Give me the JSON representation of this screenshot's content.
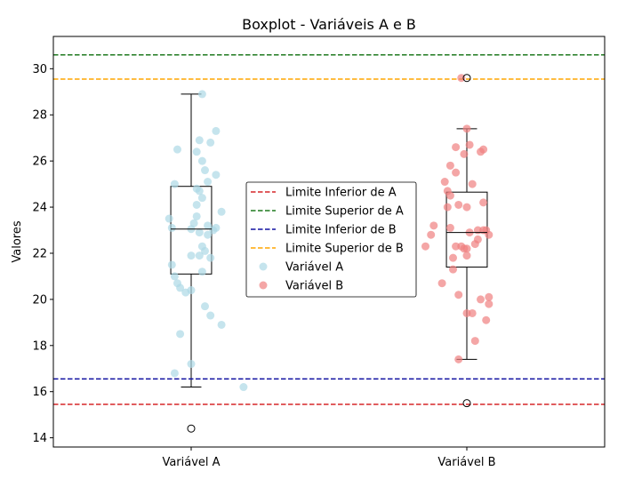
{
  "chart_data": {
    "type": "boxplot",
    "title": "Boxplot - Variáveis A e B",
    "xlabel": "",
    "ylabel": "Valores",
    "ylim": [
      13.6,
      31.4
    ],
    "yticks": [
      14,
      16,
      18,
      20,
      22,
      24,
      26,
      28,
      30
    ],
    "categories": [
      "Variável A",
      "Variável B"
    ],
    "boxes": [
      {
        "name": "Variável A",
        "whisker_low": 16.2,
        "q1": 21.1,
        "median": 23.05,
        "q3": 24.9,
        "whisker_high": 28.9,
        "outliers": [
          14.4
        ]
      },
      {
        "name": "Variável B",
        "whisker_low": 17.4,
        "q1": 21.4,
        "median": 22.9,
        "q3": 24.65,
        "whisker_high": 27.4,
        "outliers": [
          15.5,
          29.6
        ]
      }
    ],
    "reference_lines": [
      {
        "label": "Limite Inferior de A",
        "value": 15.45,
        "color": "#d62728"
      },
      {
        "label": "Limite Superior de A",
        "value": 30.6,
        "color": "#1f7a1f"
      },
      {
        "label": "Limite Inferior de B",
        "value": 16.55,
        "color": "#1010a0"
      },
      {
        "label": "Limite Superior de B",
        "value": 29.55,
        "color": "#ffa500"
      }
    ],
    "series": [
      {
        "name": "Variável A",
        "color": "#add8e6",
        "points": [
          [
            -0.06,
            25.0
          ],
          [
            0.09,
            27.3
          ],
          [
            0.04,
            28.9
          ],
          [
            0.03,
            26.9
          ],
          [
            -0.05,
            26.5
          ],
          [
            0.07,
            26.8
          ],
          [
            0.04,
            26.0
          ],
          [
            0.02,
            26.4
          ],
          [
            0.05,
            25.6
          ],
          [
            0.09,
            25.4
          ],
          [
            0.06,
            25.1
          ],
          [
            0.03,
            24.7
          ],
          [
            0.04,
            24.4
          ],
          [
            0.11,
            23.8
          ],
          [
            0.02,
            23.6
          ],
          [
            -0.08,
            23.5
          ],
          [
            0.01,
            23.3
          ],
          [
            0.06,
            23.2
          ],
          [
            0.08,
            23.0
          ],
          [
            -0.07,
            23.1
          ],
          [
            0.0,
            23.05
          ],
          [
            0.03,
            22.9
          ],
          [
            0.06,
            22.8
          ],
          [
            0.04,
            22.3
          ],
          [
            0.05,
            22.1
          ],
          [
            0.03,
            21.9
          ],
          [
            0.0,
            21.9
          ],
          [
            0.07,
            21.8
          ],
          [
            -0.07,
            21.5
          ],
          [
            0.04,
            21.2
          ],
          [
            -0.06,
            21.0
          ],
          [
            -0.05,
            20.7
          ],
          [
            -0.04,
            20.5
          ],
          [
            0.0,
            20.4
          ],
          [
            -0.02,
            20.3
          ],
          [
            0.05,
            19.7
          ],
          [
            0.07,
            19.3
          ],
          [
            0.11,
            18.9
          ],
          [
            -0.04,
            18.5
          ],
          [
            0.0,
            17.2
          ],
          [
            -0.06,
            16.8
          ],
          [
            0.19,
            16.2
          ],
          [
            0.02,
            24.8
          ],
          [
            0.09,
            23.1
          ],
          [
            0.02,
            24.1
          ]
        ]
      },
      {
        "name": "Variável B",
        "color": "#f08080",
        "points": [
          [
            -0.02,
            29.6
          ],
          [
            0.0,
            27.4
          ],
          [
            -0.04,
            26.6
          ],
          [
            0.01,
            26.7
          ],
          [
            0.05,
            26.4
          ],
          [
            0.06,
            26.5
          ],
          [
            -0.01,
            26.3
          ],
          [
            -0.06,
            25.8
          ],
          [
            -0.04,
            25.5
          ],
          [
            -0.08,
            25.1
          ],
          [
            0.02,
            25.0
          ],
          [
            -0.07,
            24.7
          ],
          [
            -0.06,
            24.5
          ],
          [
            0.06,
            24.2
          ],
          [
            -0.03,
            24.1
          ],
          [
            0.0,
            24.0
          ],
          [
            -0.07,
            24.0
          ],
          [
            -0.12,
            23.2
          ],
          [
            -0.06,
            23.1
          ],
          [
            -0.13,
            22.8
          ],
          [
            0.01,
            22.9
          ],
          [
            0.04,
            23.0
          ],
          [
            0.06,
            23.0
          ],
          [
            0.08,
            22.8
          ],
          [
            -0.15,
            22.3
          ],
          [
            -0.04,
            22.3
          ],
          [
            -0.02,
            22.3
          ],
          [
            0.0,
            22.2
          ],
          [
            0.03,
            22.4
          ],
          [
            0.04,
            22.6
          ],
          [
            -0.05,
            21.8
          ],
          [
            0.0,
            21.9
          ],
          [
            -0.05,
            21.3
          ],
          [
            -0.09,
            20.7
          ],
          [
            -0.03,
            20.2
          ],
          [
            0.05,
            20.0
          ],
          [
            0.08,
            20.1
          ],
          [
            0.08,
            19.8
          ],
          [
            0.0,
            19.4
          ],
          [
            0.02,
            19.4
          ],
          [
            0.07,
            19.1
          ],
          [
            0.03,
            18.2
          ],
          [
            -0.03,
            17.4
          ],
          [
            0.07,
            23.0
          ],
          [
            -0.01,
            22.2
          ]
        ]
      }
    ],
    "legend_position": "center"
  }
}
